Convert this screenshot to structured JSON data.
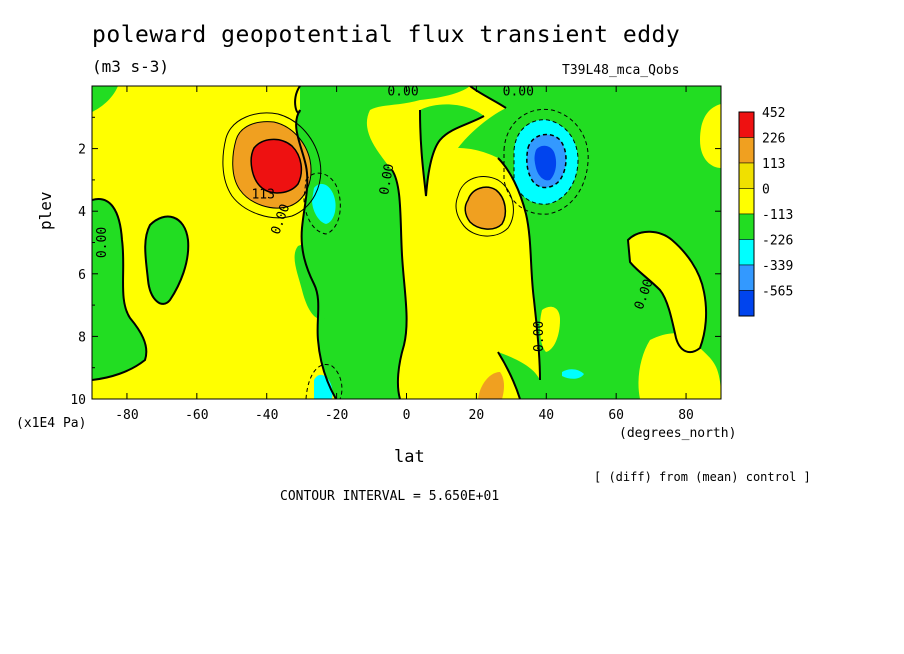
{
  "chart_data": {
    "type": "contour",
    "title": "poleward geopotential flux transient eddy",
    "units": "(m3 s-3)",
    "run": "T39L48_mca_Qobs",
    "xlabel": "lat",
    "xunit": "(degrees_north)",
    "ylabel": "plev",
    "yunit": "(x1E4 Pa)",
    "xlim": [
      -90,
      90
    ],
    "ylim": [
      0,
      10
    ],
    "y_inverted": true,
    "x_ticks": [
      -80,
      -60,
      -40,
      -20,
      0,
      20,
      40,
      60,
      80
    ],
    "y_ticks": [
      2,
      4,
      6,
      8,
      10
    ],
    "note": "[ (diff) from (mean) control ]",
    "contour_interval": "CONTOUR INTERVAL = 5.650E+01",
    "legend": {
      "labels": [
        "452",
        "226",
        "113",
        "0",
        "-113",
        "-226",
        "-339",
        "-565"
      ],
      "colors": [
        "#ee1111",
        "#f0a020",
        "#f0e000",
        "#ffff00",
        "#22dd22",
        "#00ffff",
        "#3399ff",
        "#0044ee"
      ]
    },
    "contour_labels": [
      "0.00",
      "113",
      "0.00",
      "0.00",
      "0.00",
      "0.00",
      "0.00",
      "0.00"
    ],
    "features": [
      {
        "kind": "max",
        "x": -38,
        "y": 2.5,
        "level": 452
      },
      {
        "kind": "max",
        "x": 24,
        "y": 4.0,
        "level": 226
      },
      {
        "kind": "min",
        "x": 40,
        "y": 2.6,
        "level": -565
      },
      {
        "kind": "min",
        "x": -24,
        "y": 4.0,
        "level": -226
      },
      {
        "kind": "min",
        "x": -22,
        "y": 9.5,
        "level": -226
      }
    ]
  }
}
